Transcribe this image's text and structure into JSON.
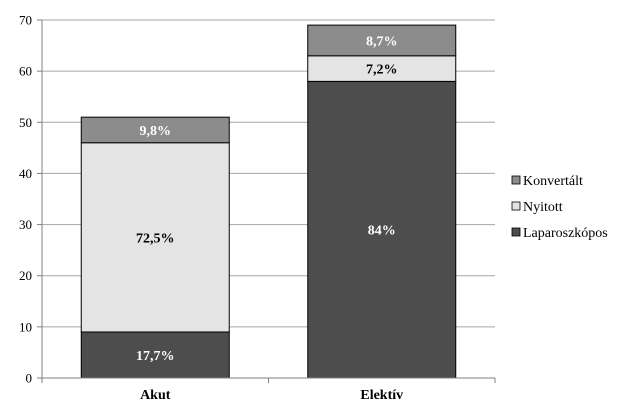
{
  "chart_data": {
    "type": "bar",
    "stacked": true,
    "categories": [
      "Akut",
      "Elektív"
    ],
    "series": [
      {
        "name": "Laparoszkópos",
        "values": [
          9,
          58
        ],
        "labels": [
          "17,7%",
          "84%"
        ],
        "color": "#4d4d4d",
        "label_color": "#ffffff"
      },
      {
        "name": "Nyitott",
        "values": [
          37,
          5
        ],
        "labels": [
          "72,5%",
          "7,2%"
        ],
        "color": "#e4e4e4",
        "label_color": "#000000"
      },
      {
        "name": "Konvertált",
        "values": [
          5,
          6
        ],
        "labels": [
          "9,8%",
          "8,7%"
        ],
        "color": "#8c8c8c",
        "label_color": "#ffffff"
      }
    ],
    "legend_order": [
      "Konvertált",
      "Nyitott",
      "Laparoszkópos"
    ],
    "ylim": [
      0,
      70
    ],
    "yticks": [
      0,
      10,
      20,
      30,
      40,
      50,
      60,
      70
    ],
    "grid": true,
    "legend_position": "right"
  }
}
